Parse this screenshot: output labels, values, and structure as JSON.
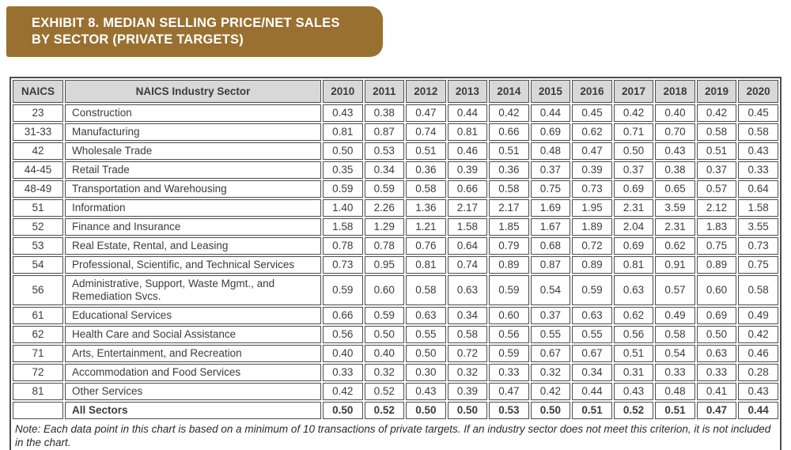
{
  "title_banner": {
    "line1": "EXHIBIT 8. MEDIAN SELLING PRICE/NET SALES",
    "line2": "BY SECTOR (PRIVATE TARGETS)",
    "bg_color": "#9A7030",
    "text_color": "#FFFFFF"
  },
  "table": {
    "colors": {
      "header_bg": "#D8D8D8",
      "border": "#4D4D4D",
      "text": "#3C3C3C"
    },
    "columns": [
      "NAICS",
      "NAICS Industry Sector",
      "2010",
      "2011",
      "2012",
      "2013",
      "2014",
      "2015",
      "2016",
      "2017",
      "2018",
      "2019",
      "2020"
    ],
    "rows": [
      {
        "naics": "23",
        "sector": "Construction",
        "values": [
          "0.43",
          "0.38",
          "0.47",
          "0.44",
          "0.42",
          "0.44",
          "0.45",
          "0.42",
          "0.40",
          "0.42",
          "0.45"
        ],
        "bold": false
      },
      {
        "naics": "31-33",
        "sector": "Manufacturing",
        "values": [
          "0.81",
          "0.87",
          "0.74",
          "0.81",
          "0.66",
          "0.69",
          "0.62",
          "0.71",
          "0.70",
          "0.58",
          "0.58"
        ],
        "bold": false
      },
      {
        "naics": "42",
        "sector": "Wholesale Trade",
        "values": [
          "0.50",
          "0.53",
          "0.51",
          "0.46",
          "0.51",
          "0.48",
          "0.47",
          "0.50",
          "0.43",
          "0.51",
          "0.43"
        ],
        "bold": false
      },
      {
        "naics": "44-45",
        "sector": "Retail Trade",
        "values": [
          "0.35",
          "0.34",
          "0.36",
          "0.39",
          "0.36",
          "0.37",
          "0.39",
          "0.37",
          "0.38",
          "0.37",
          "0.33"
        ],
        "bold": false
      },
      {
        "naics": "48-49",
        "sector": "Transportation and Warehousing",
        "values": [
          "0.59",
          "0.59",
          "0.58",
          "0.66",
          "0.58",
          "0.75",
          "0.73",
          "0.69",
          "0.65",
          "0.57",
          "0.64"
        ],
        "bold": false
      },
      {
        "naics": "51",
        "sector": "Information",
        "values": [
          "1.40",
          "2.26",
          "1.36",
          "2.17",
          "2.17",
          "1.69",
          "1.95",
          "2.31",
          "3.59",
          "2.12",
          "1.58"
        ],
        "bold": false
      },
      {
        "naics": "52",
        "sector": "Finance and Insurance",
        "values": [
          "1.58",
          "1.29",
          "1.21",
          "1.58",
          "1.85",
          "1.67",
          "1.89",
          "2.04",
          "2.31",
          "1.83",
          "3.55"
        ],
        "bold": false
      },
      {
        "naics": "53",
        "sector": "Real Estate, Rental, and Leasing",
        "values": [
          "0.78",
          "0.78",
          "0.76",
          "0.64",
          "0.79",
          "0.68",
          "0.72",
          "0.69",
          "0.62",
          "0.75",
          "0.73"
        ],
        "bold": false
      },
      {
        "naics": "54",
        "sector": "Professional, Scientific, and Technical Services",
        "values": [
          "0.73",
          "0.95",
          "0.81",
          "0.74",
          "0.89",
          "0.87",
          "0.89",
          "0.81",
          "0.91",
          "0.89",
          "0.75"
        ],
        "bold": false
      },
      {
        "naics": "56",
        "sector": "Administrative, Support, Waste Mgmt., and Remediation Svcs.",
        "values": [
          "0.59",
          "0.60",
          "0.58",
          "0.63",
          "0.59",
          "0.54",
          "0.59",
          "0.63",
          "0.57",
          "0.60",
          "0.58"
        ],
        "bold": false
      },
      {
        "naics": "61",
        "sector": "Educational Services",
        "values": [
          "0.66",
          "0.59",
          "0.63",
          "0.34",
          "0.60",
          "0.37",
          "0.63",
          "0.62",
          "0.49",
          "0.69",
          "0.49"
        ],
        "bold": false
      },
      {
        "naics": "62",
        "sector": "Health Care and Social Assistance",
        "values": [
          "0.56",
          "0.50",
          "0.55",
          "0.58",
          "0.56",
          "0.55",
          "0.55",
          "0.56",
          "0.58",
          "0.50",
          "0.42"
        ],
        "bold": false
      },
      {
        "naics": "71",
        "sector": "Arts, Entertainment, and Recreation",
        "values": [
          "0.40",
          "0.40",
          "0.50",
          "0.72",
          "0.59",
          "0.67",
          "0.67",
          "0.51",
          "0.54",
          "0.63",
          "0.46"
        ],
        "bold": false
      },
      {
        "naics": "72",
        "sector": "Accommodation and Food Services",
        "values": [
          "0.33",
          "0.32",
          "0.30",
          "0.32",
          "0.33",
          "0.32",
          "0.34",
          "0.31",
          "0.33",
          "0.33",
          "0.28"
        ],
        "bold": false
      },
      {
        "naics": "81",
        "sector": "Other Services",
        "values": [
          "0.42",
          "0.52",
          "0.43",
          "0.39",
          "0.47",
          "0.42",
          "0.44",
          "0.43",
          "0.48",
          "0.41",
          "0.43"
        ],
        "bold": false
      },
      {
        "naics": "",
        "sector": "All Sectors",
        "values": [
          "0.50",
          "0.52",
          "0.50",
          "0.50",
          "0.53",
          "0.50",
          "0.51",
          "0.52",
          "0.51",
          "0.47",
          "0.44"
        ],
        "bold": true
      }
    ]
  },
  "note": {
    "text": "Note: Each data point in this chart is based on a minimum of 10 transactions of private targets. If an industry sector does not meet this criterion, it is not included in the chart."
  }
}
